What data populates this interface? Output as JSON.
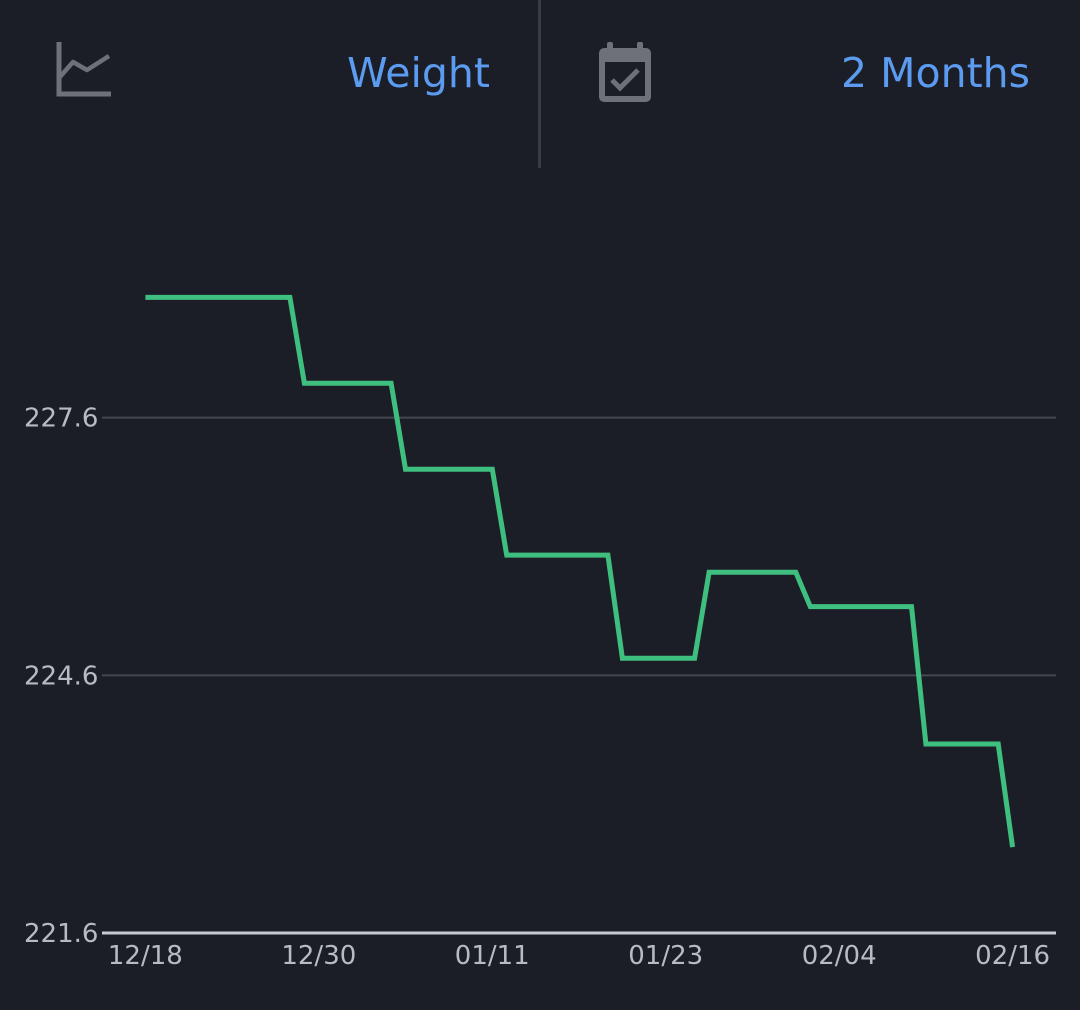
{
  "toolbar": {
    "metric_label": "Weight",
    "range_label": "2 Months",
    "metric_icon": "line-chart-icon",
    "range_icon": "calendar-check-icon"
  },
  "colors": {
    "background": "#1c1e27",
    "accent": "#5b9bf0",
    "line": "#3fbf7f",
    "icon": "#6f7178"
  },
  "chart_data": {
    "type": "line",
    "step": true,
    "grid": true,
    "y_ticks": [
      "227.6",
      "224.6",
      "221.6"
    ],
    "x_ticks": [
      "12/18",
      "12/30",
      "01/11",
      "01/23",
      "02/04",
      "02/16"
    ],
    "ylim": [
      221.6,
      230.6
    ],
    "xlim": [
      "12/15",
      "02/19"
    ],
    "series": [
      {
        "points": [
          {
            "x": "12/18",
            "y": 229.0
          },
          {
            "x": "12/28",
            "y": 229.0
          },
          {
            "x": "12/29",
            "y": 228.0
          },
          {
            "x": "01/04",
            "y": 228.0
          },
          {
            "x": "01/05",
            "y": 227.0
          },
          {
            "x": "01/11",
            "y": 227.0
          },
          {
            "x": "01/12",
            "y": 226.0
          },
          {
            "x": "01/19",
            "y": 226.0
          },
          {
            "x": "01/20",
            "y": 224.8
          },
          {
            "x": "01/25",
            "y": 224.8
          },
          {
            "x": "01/26",
            "y": 225.8
          },
          {
            "x": "02/01",
            "y": 225.8
          },
          {
            "x": "02/02",
            "y": 225.4
          },
          {
            "x": "02/09",
            "y": 225.4
          },
          {
            "x": "02/10",
            "y": 223.8
          },
          {
            "x": "02/15",
            "y": 223.8
          },
          {
            "x": "02/16",
            "y": 222.6
          }
        ]
      }
    ]
  }
}
